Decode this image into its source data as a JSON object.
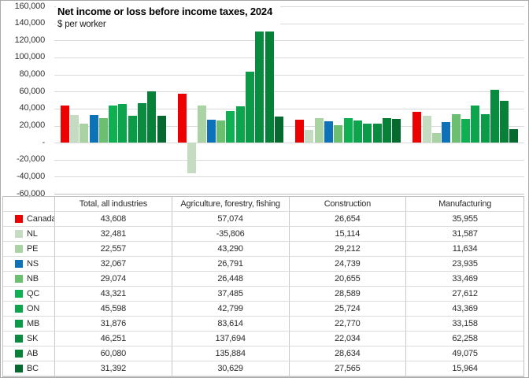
{
  "title": "Net income or loss before income taxes, 2024",
  "subtitle": "$ per worker",
  "chart_data": {
    "type": "bar",
    "title": "Net income or loss before income taxes, 2024",
    "subtitle": "$ per worker",
    "ylabel": "$ per worker",
    "xlabel": "",
    "grid": true,
    "legend_position": "data-table-left-keys",
    "ylim": [
      -60000,
      160000
    ],
    "ytick_step": 20000,
    "yticks_labels": [
      "160,000",
      "140,000",
      "120,000",
      "100,000",
      "80,000",
      "60,000",
      "40,000",
      "20,000",
      "-",
      "-20,000",
      "-40,000",
      "-60,000"
    ],
    "categories": [
      "Total, all industries",
      "Agriculture, forestry, fishing",
      "Construction",
      "Manufacturing"
    ],
    "series": [
      {
        "name": "Canada",
        "color": "#ed0000",
        "values": [
          43608,
          57074,
          26654,
          35955
        ]
      },
      {
        "name": "NL",
        "color": "#c6dcc2",
        "values": [
          32481,
          -35806,
          15114,
          31587
        ]
      },
      {
        "name": "PE",
        "color": "#a9d3a2",
        "values": [
          22557,
          43290,
          29212,
          11634
        ]
      },
      {
        "name": "NS",
        "color": "#0e72b9",
        "values": [
          32067,
          26791,
          24739,
          23935
        ]
      },
      {
        "name": "NB",
        "color": "#6cbe70",
        "values": [
          29074,
          26448,
          20655,
          33469
        ]
      },
      {
        "name": "QC",
        "color": "#0fb052",
        "values": [
          43321,
          37485,
          28589,
          27612
        ]
      },
      {
        "name": "ON",
        "color": "#0ca44c",
        "values": [
          45598,
          42799,
          25724,
          43369
        ]
      },
      {
        "name": "MB",
        "color": "#0b9a47",
        "values": [
          31876,
          83614,
          22770,
          33158
        ]
      },
      {
        "name": "SK",
        "color": "#098c3f",
        "values": [
          46251,
          137694,
          22034,
          62258
        ]
      },
      {
        "name": "AB",
        "color": "#078038",
        "values": [
          60080,
          135884,
          28634,
          49075
        ]
      },
      {
        "name": "BC",
        "color": "#066a2e",
        "values": [
          31392,
          30629,
          27565,
          15964
        ]
      }
    ],
    "gridline_color": "#d9d9d9",
    "axis_label_color": "#333333"
  }
}
